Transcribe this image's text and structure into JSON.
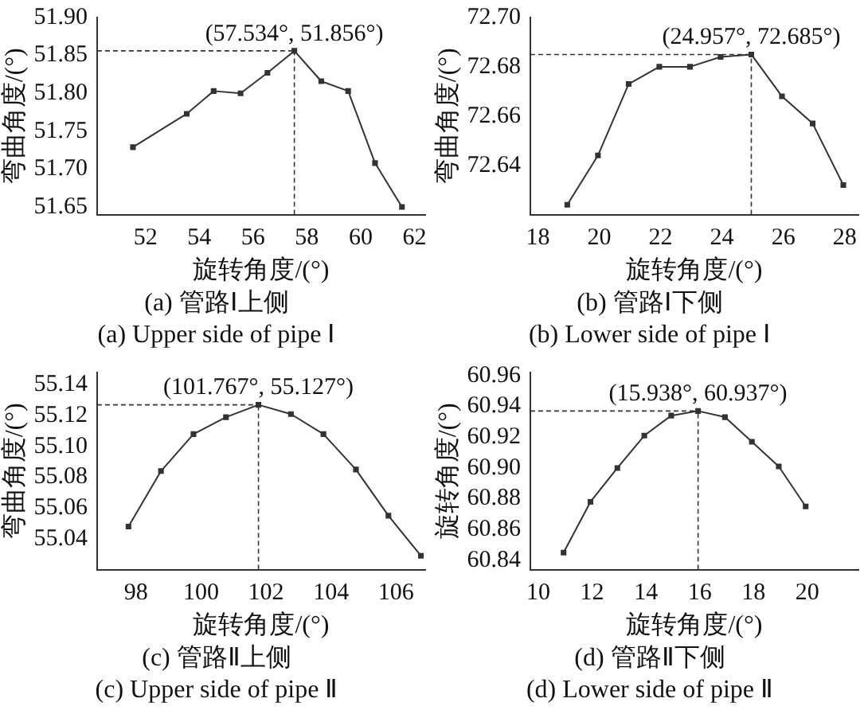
{
  "chart_data": [
    {
      "type": "line",
      "xlabel": "旋转角度/(°)",
      "ylabel": "弯曲角度/(°)",
      "title": "(a) 管路Ⅰ上侧",
      "subtitle": "(a) Upper side of pipe Ⅰ",
      "marker": "square",
      "grid": false,
      "legend": false,
      "x": [
        51.534,
        53.534,
        54.534,
        55.534,
        56.534,
        57.534,
        58.534,
        59.534,
        60.534,
        61.534
      ],
      "series": [
        {
          "color": "#333333",
          "values": [
            51.729,
            51.773,
            51.803,
            51.8,
            51.827,
            51.856,
            51.816,
            51.803,
            51.708,
            51.65
          ]
        }
      ],
      "xlim": [
        50.2,
        62.4
      ],
      "xticks": [
        52,
        54,
        56,
        58,
        60,
        62
      ],
      "ylim": [
        51.64,
        51.9
      ],
      "yticks": [
        {
          "value": 51.65,
          "label": "51.65"
        },
        {
          "value": 51.7,
          "label": "51.70"
        },
        {
          "value": 51.75,
          "label": "51.75"
        },
        {
          "value": 51.8,
          "label": "51.80"
        },
        {
          "value": 51.85,
          "label": "51.85"
        },
        {
          "value": 51.9,
          "label": "51.90"
        }
      ],
      "ref_lines": [
        {
          "axis": "x",
          "value": 57.534,
          "line_style": "dashed"
        },
        {
          "axis": "y",
          "value": 51.856,
          "line_style": "dashed"
        }
      ],
      "annotations": [
        {
          "text": "(57.534°, 51.856°)",
          "x": 57.534,
          "y": 51.856
        }
      ]
    },
    {
      "type": "line",
      "xlabel": "旋转角度/(°)",
      "ylabel": "弯曲角度/(°)",
      "title": "(b) 管路Ⅰ下侧",
      "subtitle": "(b) Lower side of pipe Ⅰ",
      "marker": "square",
      "grid": false,
      "legend": false,
      "x": [
        18.957,
        19.957,
        20.957,
        21.957,
        22.957,
        23.957,
        24.957,
        25.957,
        26.957,
        27.957
      ],
      "series": [
        {
          "color": "#333333",
          "values": [
            72.624,
            72.644,
            72.673,
            72.68,
            72.68,
            72.684,
            72.685,
            72.668,
            72.657,
            72.632
          ]
        }
      ],
      "xlim": [
        17.75,
        28.45
      ],
      "xticks": [
        18,
        20,
        22,
        24,
        26,
        28
      ],
      "ylim": [
        72.62,
        72.7
      ],
      "yticks": [
        72.64,
        72.66,
        72.68,
        {
          "value": 72.7,
          "label": "72.70"
        }
      ],
      "ref_lines": [
        {
          "axis": "x",
          "value": 24.957,
          "line_style": "dashed"
        },
        {
          "axis": "y",
          "value": 72.685,
          "line_style": "dashed"
        }
      ],
      "annotations": [
        {
          "text": "(24.957°, 72.685°)",
          "x": 24.957,
          "y": 72.685
        }
      ]
    },
    {
      "type": "line",
      "xlabel": "旋转角度/(°)",
      "ylabel": "弯曲角度/(°)",
      "title": "(c) 管路Ⅱ上侧",
      "subtitle": "(c) Upper side of pipe Ⅱ",
      "marker": "square",
      "grid": false,
      "legend": false,
      "x": [
        97.767,
        98.767,
        99.767,
        100.767,
        101.767,
        102.767,
        103.767,
        104.767,
        105.767,
        106.767
      ],
      "series": [
        {
          "color": "#333333",
          "values": [
            55.048,
            55.084,
            55.108,
            55.119,
            55.127,
            55.121,
            55.108,
            55.085,
            55.055,
            55.029
          ]
        }
      ],
      "xlim": [
        96.8,
        106.9
      ],
      "xticks": [
        98,
        100,
        102,
        104,
        106
      ],
      "ylim": [
        55.02,
        55.148
      ],
      "yticks": [
        55.04,
        55.06,
        55.08,
        {
          "value": 55.1,
          "label": "55.10"
        },
        55.12,
        55.14
      ],
      "ref_lines": [
        {
          "axis": "x",
          "value": 101.767,
          "line_style": "dashed"
        },
        {
          "axis": "y",
          "value": 55.127,
          "line_style": "dashed"
        }
      ],
      "annotations": [
        {
          "text": "(101.767°, 55.127°)",
          "x": 101.767,
          "y": 55.127
        }
      ]
    },
    {
      "type": "line",
      "xlabel": "旋转角度/(°)",
      "ylabel": "旋转角度/(°)",
      "title": "(d) 管路Ⅱ下侧",
      "subtitle": "(d) Lower side of pipe Ⅱ",
      "marker": "square",
      "grid": false,
      "legend": false,
      "x": [
        10.938,
        11.938,
        12.938,
        13.938,
        14.938,
        15.938,
        16.938,
        17.938,
        18.938,
        19.938
      ],
      "series": [
        {
          "color": "#333333",
          "values": [
            60.845,
            60.878,
            60.9,
            60.921,
            60.934,
            60.937,
            60.933,
            60.917,
            60.901,
            60.875
          ]
        }
      ],
      "xlim": [
        9.7,
        21.9
      ],
      "xticks": [
        10,
        12,
        14,
        16,
        18,
        20
      ],
      "ylim": [
        60.834,
        60.962
      ],
      "yticks": [
        60.84,
        60.86,
        60.88,
        {
          "value": 60.9,
          "label": "60.90"
        },
        60.92,
        60.94,
        60.96
      ],
      "ref_lines": [
        {
          "axis": "x",
          "value": 15.938,
          "line_style": "dashed"
        },
        {
          "axis": "y",
          "value": 60.937,
          "line_style": "dashed"
        }
      ],
      "annotations": [
        {
          "text": "(15.938°, 60.937°)",
          "x": 15.938,
          "y": 60.937
        }
      ]
    }
  ]
}
